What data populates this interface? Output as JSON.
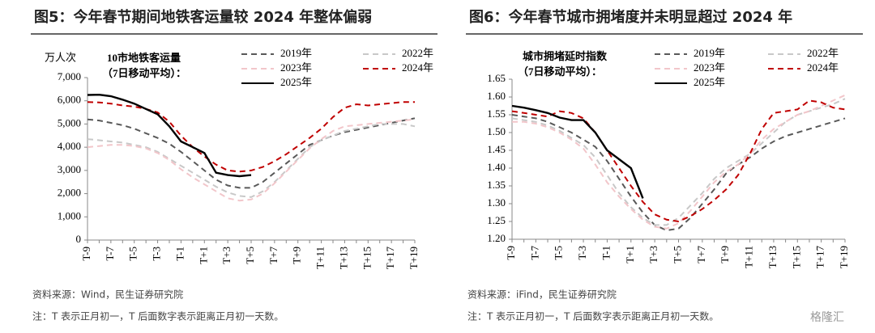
{
  "chart_data": [
    {
      "type": "line",
      "title": "图5：今年春节期间地铁客运量较 2024 年整体偏弱",
      "y_label": "万人次",
      "annotation": [
        "10市地铁客运量",
        "（7日移动平均）："
      ],
      "categories": [
        "T-9",
        null,
        "T-7",
        null,
        "T-5",
        null,
        "T-3",
        null,
        "T-1",
        null,
        "T+1",
        null,
        "T+3",
        null,
        "T+5",
        null,
        "T+7",
        null,
        "T+9",
        null,
        "T+11",
        null,
        "T+13",
        null,
        "T+15",
        null,
        "T+17",
        null,
        "T+19"
      ],
      "ylim": [
        0,
        7000
      ],
      "yticks": [
        0,
        {
          "value": 1000,
          "label": "1,000"
        },
        {
          "value": 2000,
          "label": "2,000"
        },
        {
          "value": 3000,
          "label": "3,000"
        },
        {
          "value": 4000,
          "label": "4,000"
        },
        {
          "value": 5000,
          "label": "5,000"
        },
        {
          "value": 6000,
          "label": "6,000"
        },
        {
          "value": 7000,
          "label": "7,000"
        }
      ],
      "grid": false,
      "series": [
        {
          "name": "2019年",
          "color": "#595959",
          "dash": true,
          "values": [
            5200,
            5150,
            5050,
            4950,
            4800,
            4600,
            4400,
            4150,
            3800,
            3400,
            3000,
            2600,
            2350,
            2250,
            2250,
            2500,
            2900,
            3300,
            3700,
            4100,
            4300,
            4500,
            4650,
            4750,
            4850,
            4950,
            5050,
            5150,
            5250
          ]
        },
        {
          "name": "2022年",
          "color": "#c8c8c8",
          "dash": true,
          "values": [
            4350,
            4300,
            4250,
            4200,
            4100,
            4000,
            3800,
            3500,
            3200,
            2900,
            2600,
            2300,
            2050,
            1900,
            1850,
            2100,
            2500,
            3000,
            3500,
            4000,
            4300,
            4500,
            4700,
            4800,
            4900,
            5000,
            5000,
            5000,
            4900
          ]
        },
        {
          "name": "2023年",
          "color": "#f2c6ca",
          "dash": true,
          "values": [
            4000,
            4050,
            4100,
            4100,
            4050,
            3950,
            3750,
            3450,
            3050,
            2700,
            2400,
            2100,
            1800,
            1700,
            1750,
            2000,
            2450,
            2950,
            3450,
            3950,
            4350,
            4700,
            4900,
            4950,
            5000,
            5050,
            5100,
            5150,
            5200
          ]
        },
        {
          "name": "2024年",
          "color": "#c00000",
          "dash": true,
          "values": [
            5950,
            5930,
            5880,
            5800,
            5750,
            5650,
            5500,
            5100,
            4500,
            4000,
            3600,
            3250,
            3000,
            2950,
            3000,
            3150,
            3400,
            3700,
            4050,
            4400,
            4800,
            5300,
            5700,
            5850,
            5800,
            5850,
            5900,
            5950,
            5950
          ]
        },
        {
          "name": "2025年",
          "color": "#000000",
          "dash": false,
          "values": [
            6250,
            6260,
            6200,
            6050,
            5880,
            5650,
            5420,
            4900,
            4250,
            4000,
            3750,
            2900,
            2800,
            2750,
            2800,
            null,
            null,
            null,
            null,
            null,
            null,
            null,
            null,
            null,
            null,
            null,
            null,
            null,
            null
          ]
        }
      ],
      "source": "资料来源：Wind，民生证券研究院",
      "note": "注：T 表示正月初一，T 后面数字表示距离正月初一天数。"
    },
    {
      "type": "line",
      "title": "图6：今年春节城市拥堵度并未明显超过 2024 年",
      "annotation": [
        "城市拥堵延时指数",
        "（7日移动平均）："
      ],
      "categories": [
        "T-9",
        null,
        "T-7",
        null,
        "T-5",
        null,
        "T-3",
        null,
        "T-1",
        null,
        "T+1",
        null,
        "T+3",
        null,
        "T+5",
        null,
        "T+7",
        null,
        "T+9",
        null,
        "T+11",
        null,
        "T+13",
        null,
        "T+15",
        null,
        "T+17",
        null,
        "T+19"
      ],
      "ylim": [
        1.2,
        1.65
      ],
      "yticks": [
        {
          "value": 1.2,
          "label": "1.20"
        },
        1.25,
        {
          "value": 1.3,
          "label": "1.30"
        },
        1.35,
        {
          "value": 1.4,
          "label": "1.40"
        },
        1.45,
        {
          "value": 1.5,
          "label": "1.50"
        },
        1.55,
        {
          "value": 1.6,
          "label": "1.60"
        },
        1.65
      ],
      "grid": false,
      "series": [
        {
          "name": "2019年",
          "color": "#595959",
          "dash": true,
          "values": [
            1.55,
            1.545,
            1.54,
            1.53,
            1.515,
            1.5,
            1.48,
            1.46,
            1.42,
            1.37,
            1.32,
            1.275,
            1.24,
            1.225,
            1.23,
            1.26,
            1.3,
            1.34,
            1.385,
            1.41,
            1.43,
            1.455,
            1.475,
            1.49,
            1.5,
            1.51,
            1.52,
            1.53,
            1.54
          ]
        },
        {
          "name": "2022年",
          "color": "#c8c8c8",
          "dash": true,
          "values": [
            1.54,
            1.535,
            1.53,
            1.52,
            1.505,
            1.485,
            1.465,
            1.43,
            1.38,
            1.33,
            1.29,
            1.26,
            1.24,
            1.24,
            1.26,
            1.295,
            1.33,
            1.37,
            1.4,
            1.42,
            1.44,
            1.47,
            1.5,
            1.53,
            1.55,
            1.56,
            1.57,
            1.58,
            1.595
          ]
        },
        {
          "name": "2023年",
          "color": "#f2c6ca",
          "dash": true,
          "values": [
            1.53,
            1.53,
            1.525,
            1.515,
            1.5,
            1.48,
            1.455,
            1.41,
            1.36,
            1.32,
            1.285,
            1.255,
            1.235,
            1.23,
            1.245,
            1.28,
            1.32,
            1.36,
            1.39,
            1.41,
            1.44,
            1.48,
            1.51,
            1.53,
            1.55,
            1.56,
            1.575,
            1.59,
            1.605
          ]
        },
        {
          "name": "2024年",
          "color": "#c00000",
          "dash": true,
          "values": [
            1.56,
            1.555,
            1.55,
            1.545,
            1.56,
            1.555,
            1.54,
            1.5,
            1.45,
            1.4,
            1.35,
            1.305,
            1.27,
            1.255,
            1.25,
            1.265,
            1.285,
            1.31,
            1.34,
            1.38,
            1.44,
            1.51,
            1.555,
            1.56,
            1.565,
            1.59,
            1.585,
            1.57,
            1.565
          ]
        },
        {
          "name": "2025年",
          "color": "#000000",
          "dash": false,
          "values": [
            1.575,
            1.57,
            1.563,
            1.555,
            1.542,
            1.535,
            1.535,
            1.5,
            1.45,
            1.425,
            1.4,
            1.315,
            null,
            null,
            null,
            null,
            null,
            null,
            null,
            null,
            null,
            null,
            null,
            null,
            null,
            null,
            null,
            null,
            null
          ]
        }
      ],
      "source": "资料来源：iFind，民生证券研究院",
      "note": "注：T 表示正月初一，T 后面数字表示距离正月初一天数。"
    }
  ],
  "watermark": "格隆汇"
}
